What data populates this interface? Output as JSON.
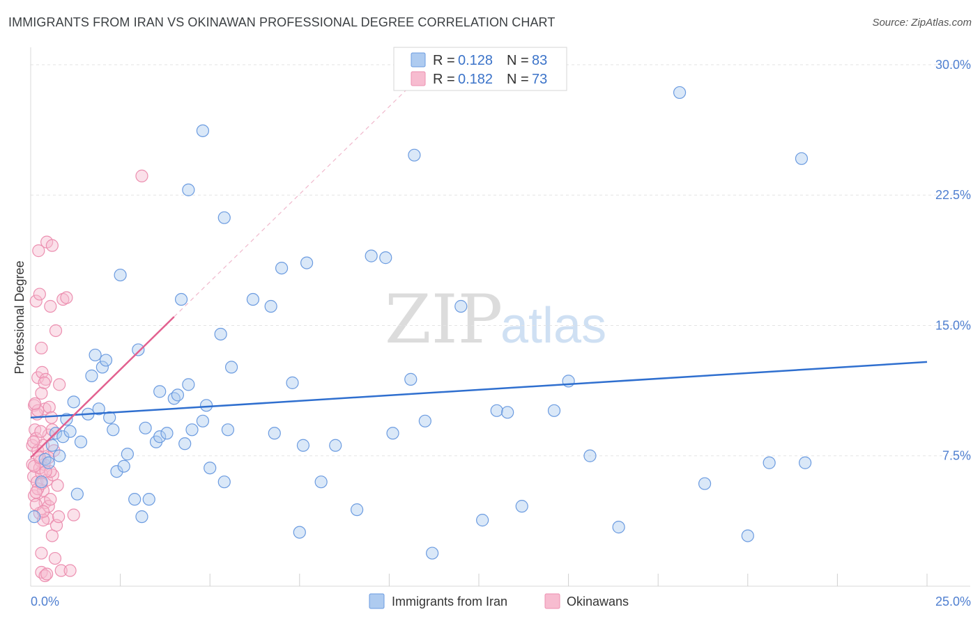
{
  "title": "IMMIGRANTS FROM IRAN VS OKINAWAN PROFESSIONAL DEGREE CORRELATION CHART",
  "source": "Source: ZipAtlas.com",
  "watermark": {
    "zip": "ZIP",
    "atlas": "atlas"
  },
  "colors": {
    "blue_fill": "#aecbf0",
    "blue_stroke": "#6b9be0",
    "blue_line": "#2f6fcf",
    "pink_fill": "#f7bcd0",
    "pink_stroke": "#ec8fb0",
    "pink_line": "#e2608f",
    "grid": "#e3e3e3",
    "axis_label": "#4f7fd0"
  },
  "legend_top": [
    {
      "r_label": "R =",
      "r_value": "0.128",
      "n_label": "N =",
      "n_value": "83"
    },
    {
      "r_label": "R =",
      "r_value": "0.182",
      "n_label": "N =",
      "n_value": "73"
    }
  ],
  "chart_data": {
    "type": "scatter",
    "title": "IMMIGRANTS FROM IRAN VS OKINAWAN PROFESSIONAL DEGREE CORRELATION CHART",
    "xlabel": "",
    "ylabel": "Professional Degree",
    "xlim": [
      0,
      25
    ],
    "ylim": [
      0,
      31
    ],
    "x_tick_labels": [
      "0.0%",
      "25.0%"
    ],
    "y_ticks": [
      7.5,
      15.0,
      22.5,
      30.0
    ],
    "y_tick_labels": [
      "7.5%",
      "15.0%",
      "22.5%",
      "30.0%"
    ],
    "x_minor_ticks": [
      2.5,
      5.0,
      7.5,
      10.0,
      12.5,
      15.0,
      17.5,
      20.0,
      22.5,
      25.0
    ],
    "grid": true,
    "legend_placement": "top-center and bottom-center",
    "series": [
      {
        "name": "Immigrants from Iran",
        "R": 0.128,
        "N": 83,
        "trend": {
          "x": [
            0,
            25
          ],
          "y": [
            9.7,
            12.9
          ]
        },
        "points": [
          [
            0.1,
            4.0
          ],
          [
            0.3,
            6.0
          ],
          [
            0.4,
            7.3
          ],
          [
            0.5,
            7.1
          ],
          [
            0.6,
            8.1
          ],
          [
            0.7,
            8.8
          ],
          [
            0.8,
            7.5
          ],
          [
            0.9,
            8.6
          ],
          [
            1.0,
            9.6
          ],
          [
            1.1,
            8.9
          ],
          [
            1.2,
            10.6
          ],
          [
            1.3,
            5.3
          ],
          [
            1.4,
            8.3
          ],
          [
            1.6,
            9.9
          ],
          [
            1.7,
            12.1
          ],
          [
            1.8,
            13.3
          ],
          [
            1.9,
            10.2
          ],
          [
            2.0,
            12.6
          ],
          [
            2.1,
            13.0
          ],
          [
            2.2,
            9.7
          ],
          [
            2.3,
            9.0
          ],
          [
            2.4,
            6.6
          ],
          [
            2.5,
            17.9
          ],
          [
            2.6,
            6.9
          ],
          [
            2.7,
            7.6
          ],
          [
            2.9,
            5.0
          ],
          [
            3.0,
            13.6
          ],
          [
            3.1,
            4.0
          ],
          [
            3.2,
            9.1
          ],
          [
            3.3,
            5.0
          ],
          [
            3.5,
            8.3
          ],
          [
            3.6,
            11.2
          ],
          [
            3.6,
            8.6
          ],
          [
            3.8,
            8.8
          ],
          [
            4.0,
            10.8
          ],
          [
            4.1,
            11.0
          ],
          [
            4.2,
            16.5
          ],
          [
            4.3,
            8.2
          ],
          [
            4.4,
            11.6
          ],
          [
            4.4,
            22.8
          ],
          [
            4.5,
            9.0
          ],
          [
            4.8,
            26.2
          ],
          [
            4.8,
            9.5
          ],
          [
            4.9,
            10.4
          ],
          [
            5.0,
            6.8
          ],
          [
            5.3,
            14.5
          ],
          [
            5.4,
            6.0
          ],
          [
            5.4,
            21.2
          ],
          [
            5.5,
            9.0
          ],
          [
            5.6,
            12.6
          ],
          [
            6.2,
            16.5
          ],
          [
            6.7,
            16.1
          ],
          [
            6.8,
            8.8
          ],
          [
            7.0,
            18.3
          ],
          [
            7.3,
            11.7
          ],
          [
            7.5,
            3.1
          ],
          [
            7.6,
            8.1
          ],
          [
            7.7,
            18.6
          ],
          [
            8.1,
            6.0
          ],
          [
            8.5,
            8.1
          ],
          [
            9.1,
            4.4
          ],
          [
            9.5,
            19.0
          ],
          [
            9.9,
            18.9
          ],
          [
            10.1,
            8.8
          ],
          [
            10.6,
            11.9
          ],
          [
            10.7,
            24.8
          ],
          [
            11.0,
            9.5
          ],
          [
            11.2,
            1.9
          ],
          [
            12.0,
            16.1
          ],
          [
            12.6,
            3.8
          ],
          [
            13.0,
            10.1
          ],
          [
            13.3,
            10.0
          ],
          [
            13.7,
            4.6
          ],
          [
            14.6,
            10.1
          ],
          [
            15.0,
            11.8
          ],
          [
            15.6,
            7.5
          ],
          [
            16.4,
            3.4
          ],
          [
            18.1,
            28.4
          ],
          [
            18.8,
            5.9
          ],
          [
            20.0,
            2.9
          ],
          [
            20.6,
            7.1
          ],
          [
            21.5,
            24.6
          ],
          [
            21.6,
            7.1
          ]
        ]
      },
      {
        "name": "Okinawans",
        "R": 0.182,
        "N": 73,
        "trend": {
          "x": [
            0,
            4
          ],
          "y": [
            7.4,
            15.5
          ]
        },
        "dashed_extension": {
          "x": [
            4,
            10.5
          ],
          "y": [
            15.5,
            28.6
          ]
        },
        "points": [
          [
            0.05,
            8.1
          ],
          [
            0.05,
            7.0
          ],
          [
            0.08,
            6.3
          ],
          [
            0.1,
            5.2
          ],
          [
            0.1,
            10.4
          ],
          [
            0.12,
            9.0
          ],
          [
            0.15,
            8.5
          ],
          [
            0.15,
            16.4
          ],
          [
            0.18,
            6.0
          ],
          [
            0.2,
            12.0
          ],
          [
            0.2,
            7.8
          ],
          [
            0.22,
            19.3
          ],
          [
            0.25,
            16.8
          ],
          [
            0.25,
            4.2
          ],
          [
            0.28,
            7.2
          ],
          [
            0.3,
            13.7
          ],
          [
            0.3,
            11.1
          ],
          [
            0.3,
            6.5
          ],
          [
            0.32,
            12.3
          ],
          [
            0.35,
            8.1
          ],
          [
            0.35,
            5.5
          ],
          [
            0.38,
            7.0
          ],
          [
            0.4,
            10.2
          ],
          [
            0.4,
            4.8
          ],
          [
            0.42,
            11.9
          ],
          [
            0.45,
            19.8
          ],
          [
            0.45,
            6.1
          ],
          [
            0.48,
            3.9
          ],
          [
            0.5,
            8.7
          ],
          [
            0.5,
            4.6
          ],
          [
            0.52,
            10.3
          ],
          [
            0.55,
            16.1
          ],
          [
            0.55,
            5.0
          ],
          [
            0.58,
            9.7
          ],
          [
            0.6,
            19.6
          ],
          [
            0.6,
            2.9
          ],
          [
            0.62,
            6.4
          ],
          [
            0.65,
            7.8
          ],
          [
            0.68,
            1.6
          ],
          [
            0.7,
            14.7
          ],
          [
            0.72,
            3.5
          ],
          [
            0.75,
            5.8
          ],
          [
            0.78,
            4.0
          ],
          [
            0.8,
            11.6
          ],
          [
            0.85,
            0.9
          ],
          [
            0.9,
            16.5
          ],
          [
            1.0,
            16.6
          ],
          [
            1.1,
            0.9
          ],
          [
            1.2,
            4.1
          ],
          [
            0.3,
            1.9
          ],
          [
            0.3,
            0.8
          ],
          [
            0.4,
            0.6
          ],
          [
            0.45,
            0.7
          ],
          [
            0.2,
            5.6
          ],
          [
            0.25,
            6.8
          ],
          [
            0.35,
            3.8
          ],
          [
            0.15,
            4.7
          ],
          [
            0.1,
            6.9
          ],
          [
            0.18,
            9.9
          ],
          [
            0.28,
            8.9
          ],
          [
            0.5,
            7.4
          ],
          [
            0.55,
            6.6
          ],
          [
            0.6,
            9.0
          ],
          [
            3.1,
            23.6
          ],
          [
            0.2,
            10.1
          ],
          [
            0.3,
            5.9
          ],
          [
            0.35,
            4.3
          ],
          [
            0.42,
            6.6
          ],
          [
            0.25,
            7.4
          ],
          [
            0.15,
            5.4
          ],
          [
            0.08,
            8.3
          ],
          [
            0.12,
            10.5
          ],
          [
            0.38,
            11.7
          ]
        ]
      }
    ]
  }
}
